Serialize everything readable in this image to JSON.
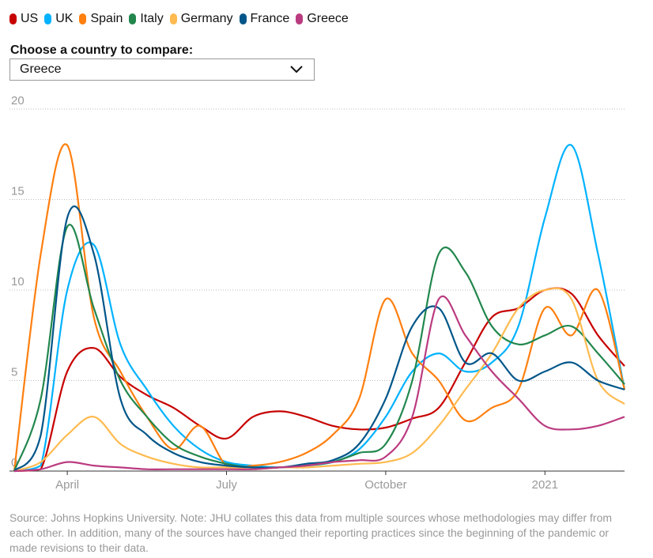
{
  "legend": [
    {
      "name": "US",
      "color": "#c70000"
    },
    {
      "name": "UK",
      "color": "#00b2ff"
    },
    {
      "name": "Spain",
      "color": "#ff7f0f"
    },
    {
      "name": "Italy",
      "color": "#22874d"
    },
    {
      "name": "Germany",
      "color": "#ffbb50"
    },
    {
      "name": "France",
      "color": "#005689"
    },
    {
      "name": "Greece",
      "color": "#bb3b80"
    }
  ],
  "selector": {
    "label": "Choose a country to compare:",
    "selected": "Greece",
    "icon": "chevron-down-icon"
  },
  "source": "Source: Johns Hopkins University. Note: JHU collates this data from multiple sources whose methodologies may differ from each other. In addition, many of the sources have changed their reporting practices since the beginning of the pandemic or made revisions to their data.",
  "chart_data": {
    "type": "line",
    "y_ticks": [
      0,
      5,
      10,
      15,
      20
    ],
    "ylim": [
      0,
      20
    ],
    "x_ticks": [
      "April",
      "July",
      "October",
      "2021"
    ],
    "x": [
      "Mar 1",
      "Mar 15",
      "Apr 1",
      "Apr 15",
      "May 1",
      "May 15",
      "Jun 1",
      "Jun 15",
      "Jul 1",
      "Jul 15",
      "Aug 1",
      "Aug 15",
      "Sep 1",
      "Sep 15",
      "Oct 1",
      "Oct 15",
      "Nov 1",
      "Nov 15",
      "Dec 1",
      "Dec 15",
      "Jan 1",
      "Jan 15",
      "Feb 1",
      "Feb 15"
    ],
    "grid": true,
    "series": [
      {
        "name": "US",
        "color": "#c70000",
        "values": [
          0,
          0.1,
          5.5,
          6.8,
          5.2,
          4.2,
          3.5,
          2.5,
          1.8,
          3.0,
          3.3,
          3.0,
          2.5,
          2.3,
          2.4,
          2.9,
          3.5,
          6.0,
          8.5,
          9.0,
          10.0,
          9.8,
          7.5,
          5.8
        ]
      },
      {
        "name": "UK",
        "color": "#00b2ff",
        "values": [
          0,
          0.3,
          10.0,
          12.5,
          7.0,
          4.5,
          2.5,
          1.2,
          0.5,
          0.3,
          0.2,
          0.3,
          0.5,
          1.2,
          3.0,
          5.5,
          6.5,
          5.5,
          6.0,
          8.0,
          14.0,
          18.0,
          12.0,
          4.5
        ]
      },
      {
        "name": "Spain",
        "color": "#ff7f0f",
        "values": [
          0,
          12.0,
          18.0,
          8.5,
          5.5,
          3.0,
          1.2,
          2.5,
          0.3,
          0.3,
          0.5,
          1.0,
          2.0,
          4.0,
          9.5,
          6.5,
          5.0,
          2.8,
          3.5,
          4.5,
          9.0,
          7.5,
          10.0,
          4.5
        ]
      },
      {
        "name": "Italy",
        "color": "#22874d",
        "values": [
          0,
          4.0,
          13.5,
          9.0,
          5.0,
          3.0,
          1.5,
          0.8,
          0.4,
          0.2,
          0.2,
          0.3,
          0.5,
          1.0,
          1.5,
          5.0,
          12.0,
          11.0,
          8.0,
          7.0,
          7.5,
          8.0,
          6.5,
          4.8
        ]
      },
      {
        "name": "Germany",
        "color": "#ffbb50",
        "values": [
          0,
          0.5,
          2.0,
          3.0,
          1.5,
          0.8,
          0.4,
          0.2,
          0.2,
          0.1,
          0.2,
          0.2,
          0.3,
          0.4,
          0.5,
          1.0,
          2.5,
          4.5,
          6.5,
          9.0,
          10.0,
          9.5,
          5.0,
          3.7
        ]
      },
      {
        "name": "France",
        "color": "#005689",
        "values": [
          0,
          2.0,
          14.0,
          12.0,
          4.0,
          2.0,
          1.0,
          0.5,
          0.3,
          0.2,
          0.2,
          0.4,
          0.6,
          1.5,
          4.0,
          8.0,
          9.0,
          6.0,
          6.5,
          5.0,
          5.5,
          6.0,
          5.0,
          4.5
        ]
      },
      {
        "name": "Greece",
        "color": "#bb3b80",
        "values": [
          0,
          0.1,
          0.5,
          0.3,
          0.2,
          0.1,
          0.1,
          0.1,
          0.1,
          0.1,
          0.2,
          0.3,
          0.5,
          0.6,
          0.8,
          3.0,
          9.5,
          7.5,
          5.5,
          4.0,
          2.5,
          2.3,
          2.5,
          3.0
        ]
      }
    ]
  }
}
